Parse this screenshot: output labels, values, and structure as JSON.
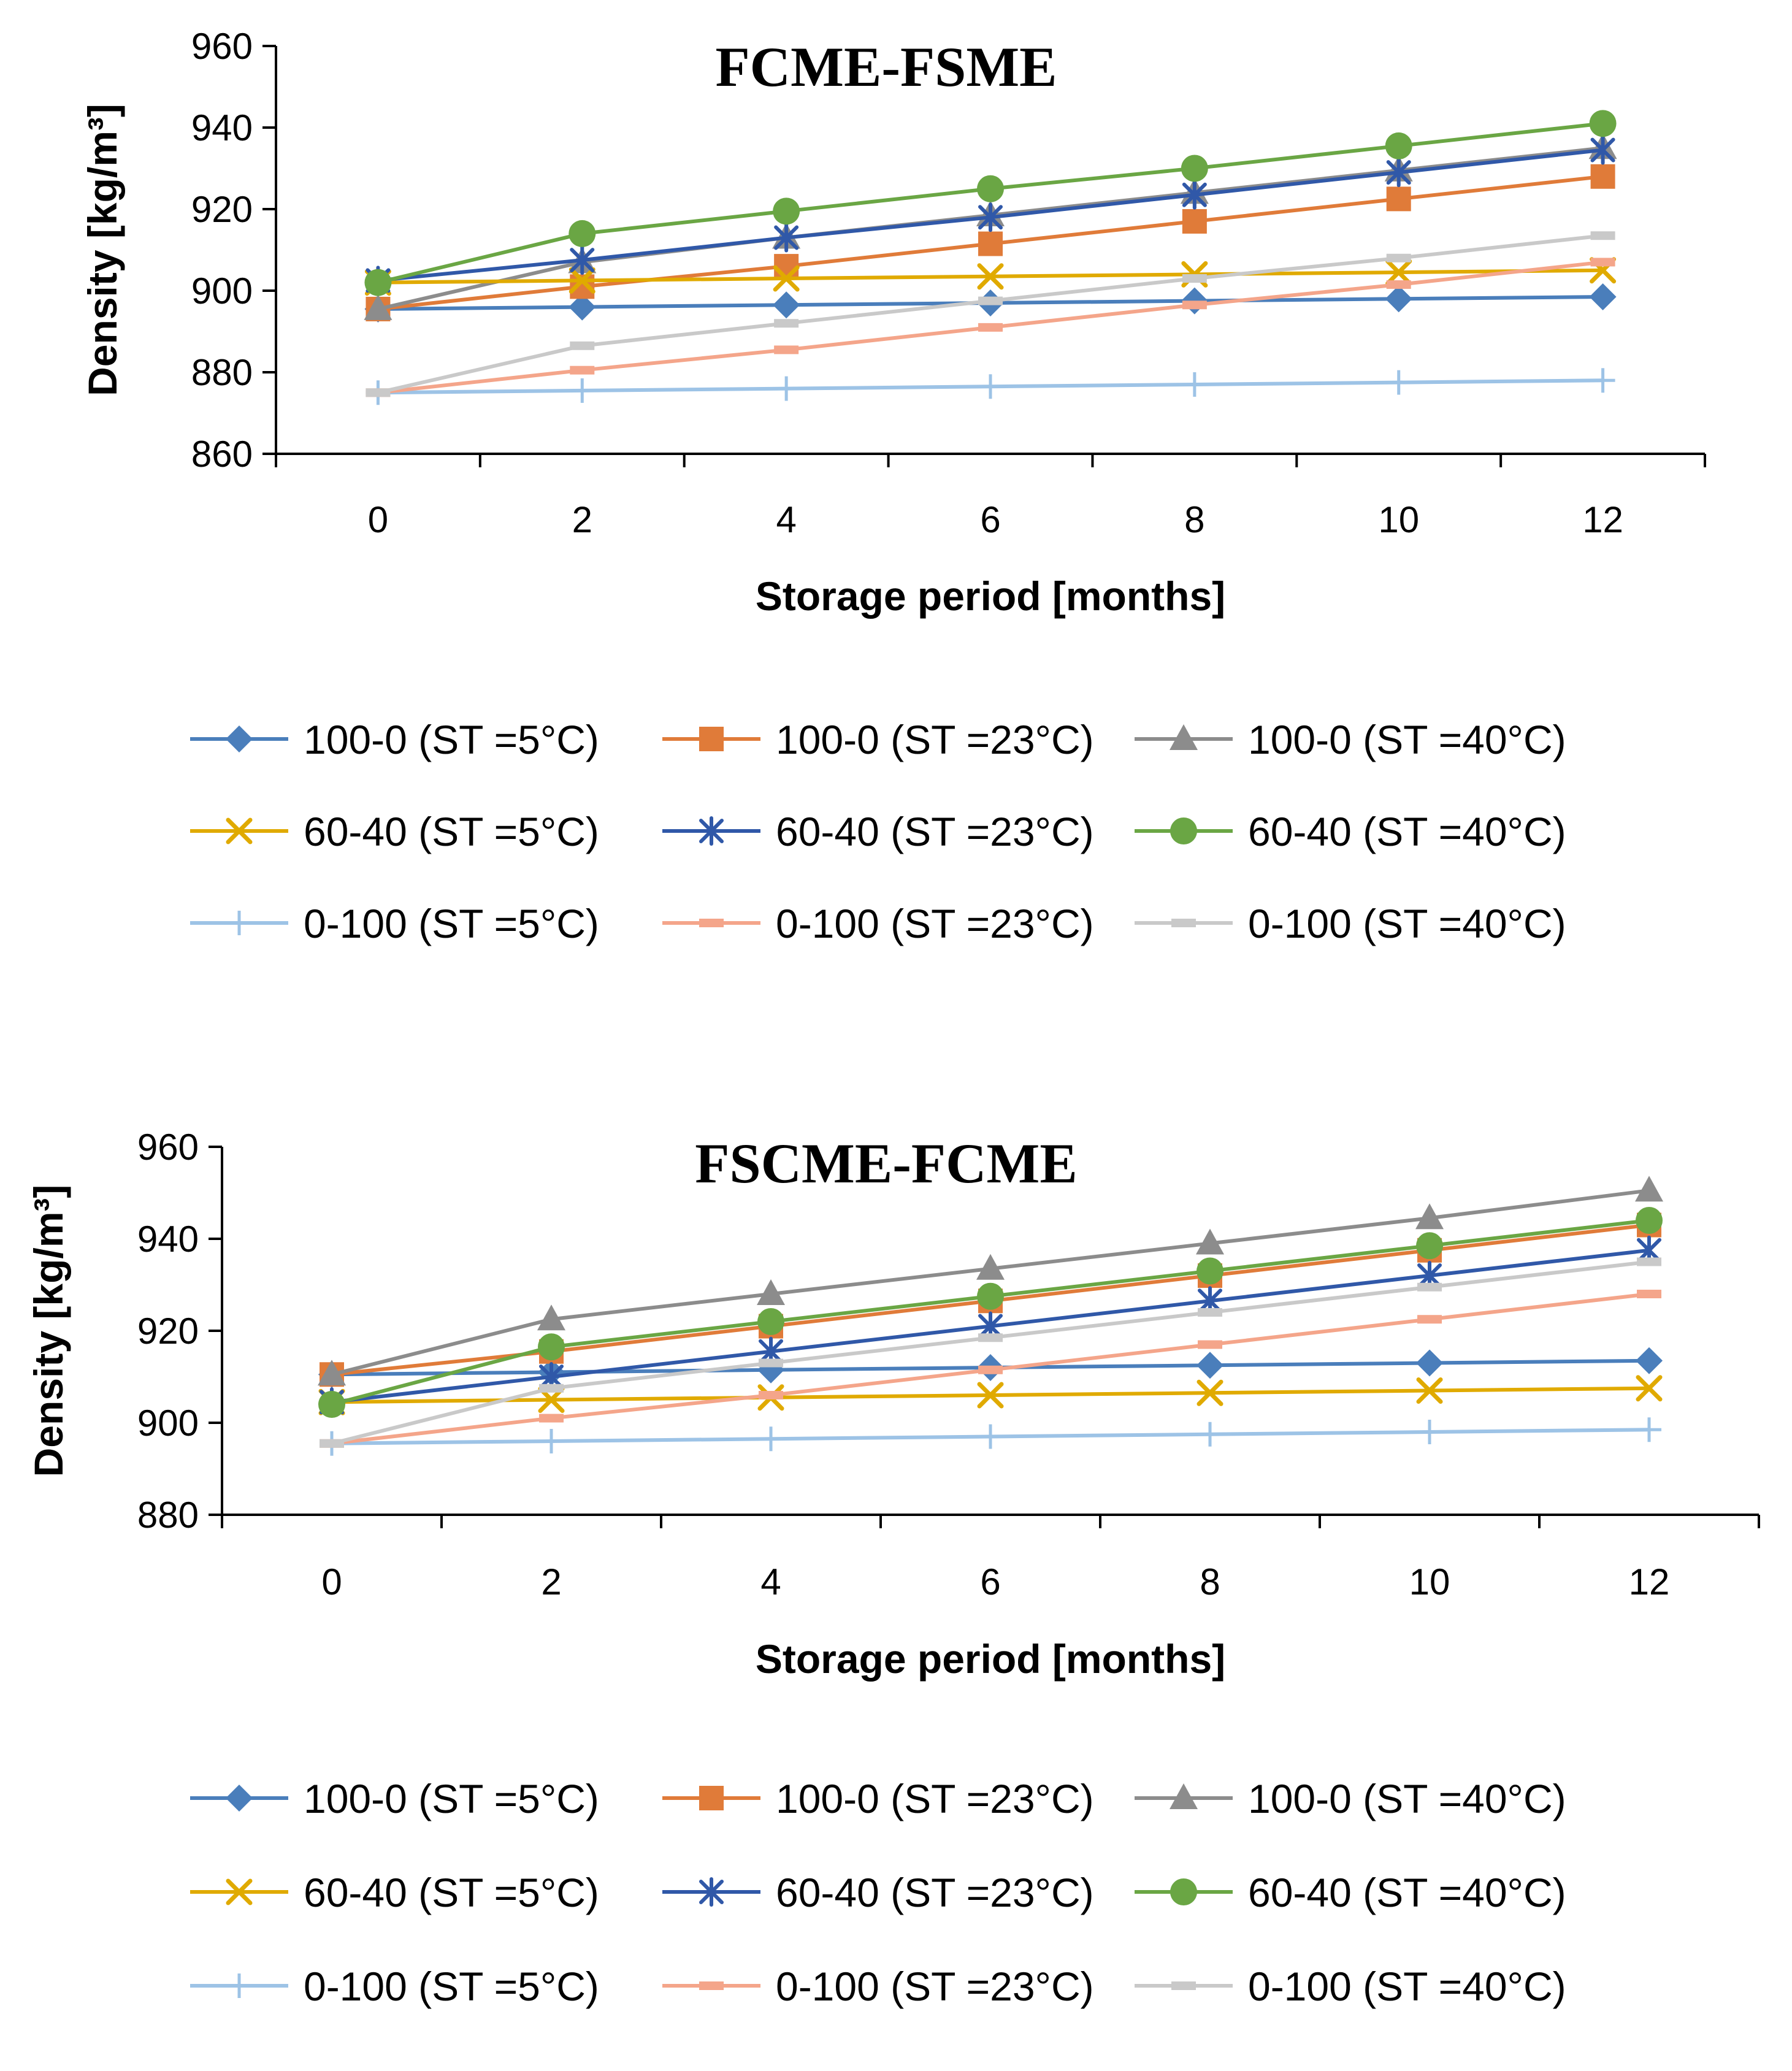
{
  "chart_data": [
    {
      "type": "line",
      "title": "FCME-FSME",
      "xlabel": "Storage period [months]",
      "ylabel": "Density [kg/m³]",
      "x": [
        0,
        2,
        4,
        6,
        8,
        10,
        12
      ],
      "ylim": [
        860,
        960
      ],
      "yticks": [
        860,
        880,
        900,
        920,
        940,
        960
      ],
      "grid": false,
      "legend_position": "bottom",
      "series": [
        {
          "name": "100-0 (ST =5°C)",
          "color": "#4a7ebb",
          "marker": "diamond",
          "values": [
            895.5,
            896.0,
            896.5,
            897.0,
            897.5,
            898.0,
            898.5
          ]
        },
        {
          "name": "100-0 (ST =23°C)",
          "color": "#e07b39",
          "marker": "square",
          "values": [
            895.5,
            901.0,
            906.0,
            911.5,
            917.0,
            922.5,
            928.0
          ]
        },
        {
          "name": "100-0 (ST =40°C)",
          "color": "#8c8c8c",
          "marker": "triangle",
          "values": [
            895.5,
            907.0,
            913.0,
            918.5,
            924.0,
            929.5,
            935.0
          ]
        },
        {
          "name": "60-40 (ST =5°C)",
          "color": "#e0aa00",
          "marker": "x",
          "values": [
            902.0,
            902.5,
            903.0,
            903.5,
            904.0,
            904.5,
            905.0
          ]
        },
        {
          "name": "60-40 (ST =23°C)",
          "color": "#3058a8",
          "marker": "star",
          "values": [
            902.5,
            907.5,
            913.0,
            918.0,
            923.5,
            929.0,
            934.5
          ]
        },
        {
          "name": "60-40 (ST =40°C)",
          "color": "#6aa644",
          "marker": "circle",
          "values": [
            902.0,
            914.0,
            919.5,
            925.0,
            930.0,
            935.5,
            941.0
          ]
        },
        {
          "name": "0-100 (ST =5°C)",
          "color": "#9dc3e6",
          "marker": "plus",
          "values": [
            875.0,
            875.5,
            876.0,
            876.5,
            877.0,
            877.5,
            878.0
          ]
        },
        {
          "name": "0-100 (ST =23°C)",
          "color": "#f4a58a",
          "marker": "dash",
          "values": [
            875.0,
            880.5,
            885.5,
            891.0,
            896.5,
            901.5,
            907.0
          ]
        },
        {
          "name": "0-100 (ST =40°C)",
          "color": "#c9c9c9",
          "marker": "dash",
          "values": [
            875.0,
            886.5,
            892.0,
            897.5,
            903.0,
            908.0,
            913.5
          ]
        }
      ]
    },
    {
      "type": "line",
      "title": "FSCME-FCME",
      "xlabel": "Storage period [months]",
      "ylabel": "Density [kg/m³]",
      "x": [
        0,
        2,
        4,
        6,
        8,
        10,
        12
      ],
      "ylim": [
        880,
        960
      ],
      "yticks": [
        880,
        900,
        920,
        940,
        960
      ],
      "grid": false,
      "legend_position": "bottom",
      "series": [
        {
          "name": "100-0 (ST =5°C)",
          "color": "#4a7ebb",
          "marker": "diamond",
          "values": [
            910.5,
            911.0,
            911.5,
            912.0,
            912.5,
            913.0,
            913.5
          ]
        },
        {
          "name": "100-0 (ST =23°C)",
          "color": "#e07b39",
          "marker": "square",
          "values": [
            910.5,
            915.5,
            921.0,
            926.5,
            932.0,
            937.5,
            943.0
          ]
        },
        {
          "name": "100-0 (ST =40°C)",
          "color": "#8c8c8c",
          "marker": "triangle",
          "values": [
            910.5,
            922.5,
            928.0,
            933.5,
            939.0,
            944.5,
            950.5
          ]
        },
        {
          "name": "60-40 (ST =5°C)",
          "color": "#e0aa00",
          "marker": "x",
          "values": [
            904.5,
            905.0,
            905.5,
            906.0,
            906.5,
            907.0,
            907.5
          ]
        },
        {
          "name": "60-40 (ST =23°C)",
          "color": "#3058a8",
          "marker": "star",
          "values": [
            904.5,
            910.0,
            915.5,
            921.0,
            926.5,
            932.0,
            937.5
          ]
        },
        {
          "name": "60-40 (ST =40°C)",
          "color": "#6aa644",
          "marker": "circle",
          "values": [
            904.0,
            916.5,
            922.0,
            927.5,
            933.0,
            938.5,
            944.0
          ]
        },
        {
          "name": "0-100 (ST =5°C)",
          "color": "#9dc3e6",
          "marker": "plus",
          "values": [
            895.5,
            896.0,
            896.5,
            897.0,
            897.5,
            898.0,
            898.5
          ]
        },
        {
          "name": "0-100 (ST =23°C)",
          "color": "#f4a58a",
          "marker": "dash",
          "values": [
            895.5,
            901.0,
            906.0,
            911.5,
            917.0,
            922.5,
            928.0
          ]
        },
        {
          "name": "0-100 (ST =40°C)",
          "color": "#c9c9c9",
          "marker": "dash",
          "values": [
            895.5,
            907.5,
            913.0,
            918.5,
            924.0,
            929.5,
            935.0
          ]
        }
      ]
    }
  ]
}
